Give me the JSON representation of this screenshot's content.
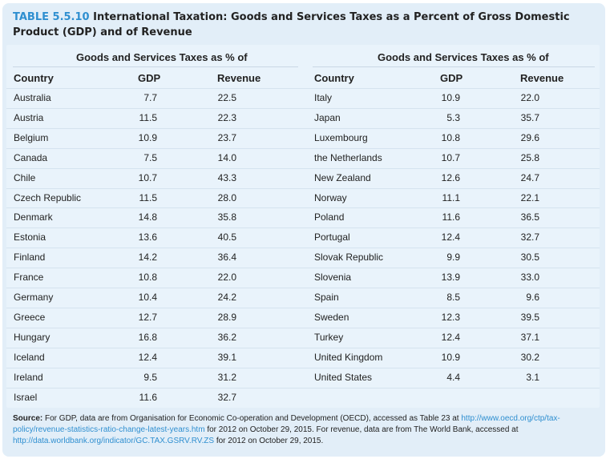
{
  "title": {
    "number": "TABLE 5.5.10",
    "text": "International Taxation: Goods and Services Taxes as a Percent of Gross Domestic Product (GDP) and of Revenue"
  },
  "group_header": "Goods and Services Taxes as % of",
  "columns": {
    "country": "Country",
    "gdp": "GDP",
    "revenue": "Revenue"
  },
  "left_rows": [
    {
      "country": "Australia",
      "gdp": "7.7",
      "revenue": "22.5"
    },
    {
      "country": "Austria",
      "gdp": "11.5",
      "revenue": "22.3"
    },
    {
      "country": "Belgium",
      "gdp": "10.9",
      "revenue": "23.7"
    },
    {
      "country": "Canada",
      "gdp": "7.5",
      "revenue": "14.0"
    },
    {
      "country": "Chile",
      "gdp": "10.7",
      "revenue": "43.3"
    },
    {
      "country": "Czech Republic",
      "gdp": "11.5",
      "revenue": "28.0"
    },
    {
      "country": "Denmark",
      "gdp": "14.8",
      "revenue": "35.8"
    },
    {
      "country": "Estonia",
      "gdp": "13.6",
      "revenue": "40.5"
    },
    {
      "country": "Finland",
      "gdp": "14.2",
      "revenue": "36.4"
    },
    {
      "country": "France",
      "gdp": "10.8",
      "revenue": "22.0"
    },
    {
      "country": "Germany",
      "gdp": "10.4",
      "revenue": "24.2"
    },
    {
      "country": "Greece",
      "gdp": "12.7",
      "revenue": "28.9"
    },
    {
      "country": "Hungary",
      "gdp": "16.8",
      "revenue": "36.2"
    },
    {
      "country": "Iceland",
      "gdp": "12.4",
      "revenue": "39.1"
    },
    {
      "country": "Ireland",
      "gdp": "9.5",
      "revenue": "31.2"
    },
    {
      "country": "Israel",
      "gdp": "11.6",
      "revenue": "32.7"
    }
  ],
  "right_rows": [
    {
      "country": "Italy",
      "gdp": "10.9",
      "revenue": "22.0"
    },
    {
      "country": "Japan",
      "gdp": "5.3",
      "revenue": "35.7"
    },
    {
      "country": "Luxembourg",
      "gdp": "10.8",
      "revenue": "29.6"
    },
    {
      "country": "the Netherlands",
      "gdp": "10.7",
      "revenue": "25.8"
    },
    {
      "country": "New Zealand",
      "gdp": "12.6",
      "revenue": "24.7"
    },
    {
      "country": "Norway",
      "gdp": "11.1",
      "revenue": "22.1"
    },
    {
      "country": "Poland",
      "gdp": "11.6",
      "revenue": "36.5"
    },
    {
      "country": "Portugal",
      "gdp": "12.4",
      "revenue": "32.7"
    },
    {
      "country": "Slovak Republic",
      "gdp": "9.9",
      "revenue": "30.5"
    },
    {
      "country": "Slovenia",
      "gdp": "13.9",
      "revenue": "33.0"
    },
    {
      "country": "Spain",
      "gdp": "8.5",
      "revenue": "9.6"
    },
    {
      "country": "Sweden",
      "gdp": "12.3",
      "revenue": "39.5"
    },
    {
      "country": "Turkey",
      "gdp": "12.4",
      "revenue": "37.1"
    },
    {
      "country": "United Kingdom",
      "gdp": "10.9",
      "revenue": "30.2"
    },
    {
      "country": "United States",
      "gdp": "4.4",
      "revenue": "3.1"
    }
  ],
  "source": {
    "label": "Source:",
    "text1": "For GDP, data are from Organisation for Economic Co-operation and Development (OECD), accessed as Table 23 at",
    "link1": "http://www.oecd.org/ctp/tax-policy/revenue-statistics-ratio-change-latest-years.htm",
    "text2": "for 2012 on October 29, 2015. For revenue, data are from The World Bank, accessed at",
    "link2": "http://data.worldbank.org/indicator/GC.TAX.GSRV.RV.ZS",
    "text3": "for 2012 on October 29, 2015."
  },
  "colors": {
    "frame_bg": "#e2eef8",
    "accent": "#2f8fd0"
  }
}
